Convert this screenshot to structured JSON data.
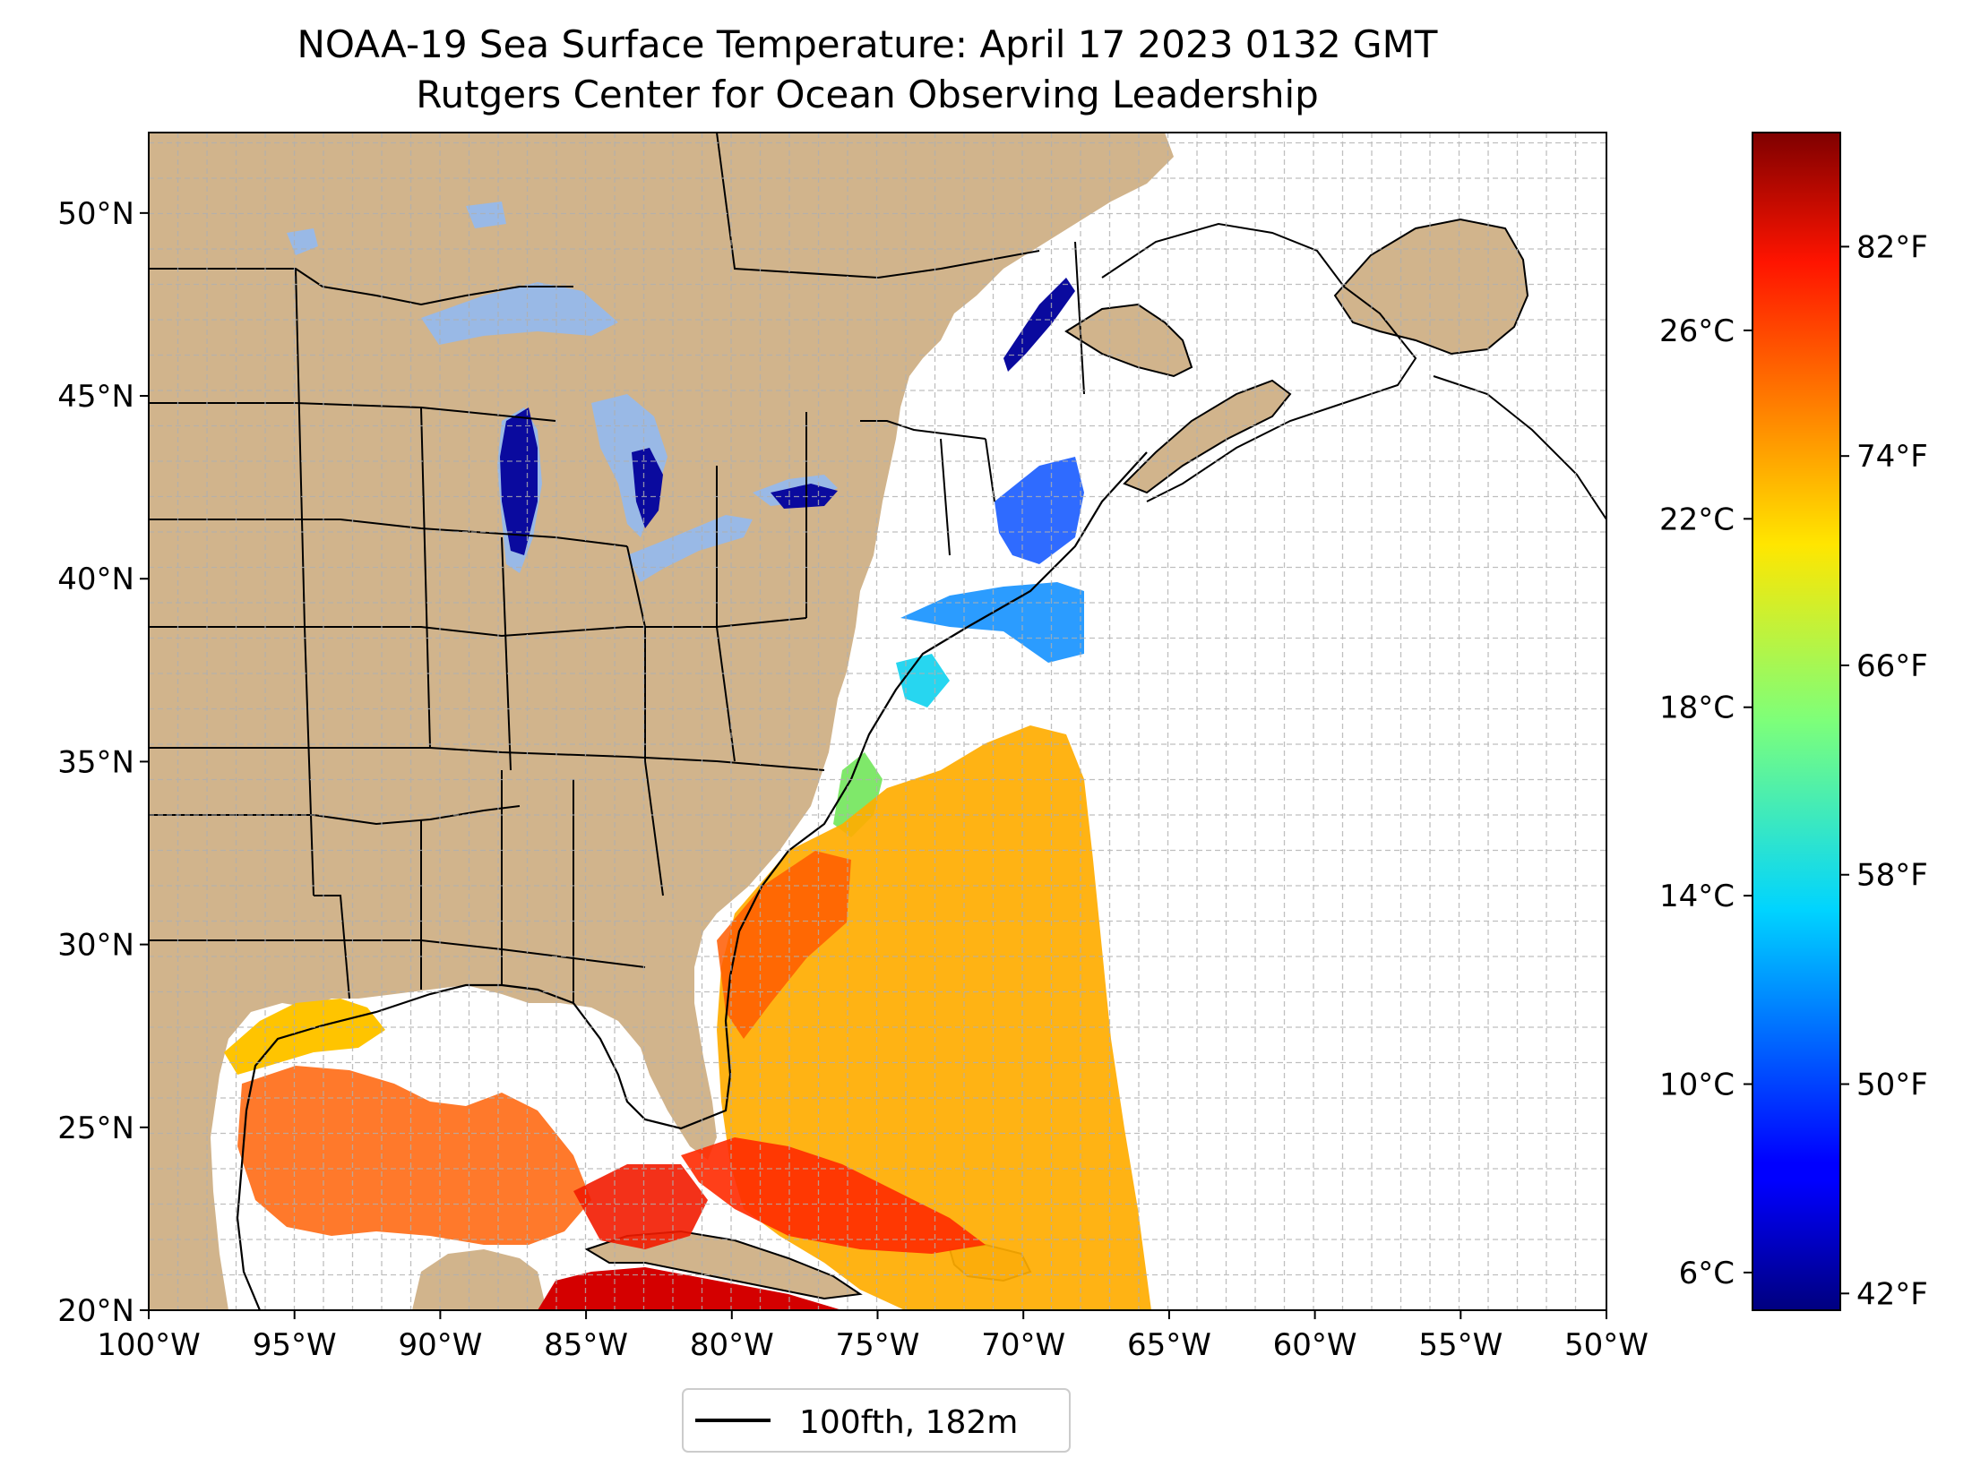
{
  "title": {
    "line1": "NOAA-19 Sea Surface Temperature: April 17 2023 0132 GMT",
    "line2": "Rutgers Center for Ocean Observing Leadership"
  },
  "map": {
    "lon_range": [
      -100,
      -50
    ],
    "lat_range": [
      20,
      52.2
    ],
    "lon_ticks": [
      {
        "lon": -100,
        "label": "100°W"
      },
      {
        "lon": -95,
        "label": "95°W"
      },
      {
        "lon": -90,
        "label": "90°W"
      },
      {
        "lon": -85,
        "label": "85°W"
      },
      {
        "lon": -80,
        "label": "80°W"
      },
      {
        "lon": -75,
        "label": "75°W"
      },
      {
        "lon": -70,
        "label": "70°W"
      },
      {
        "lon": -65,
        "label": "65°W"
      },
      {
        "lon": -60,
        "label": "60°W"
      },
      {
        "lon": -55,
        "label": "55°W"
      },
      {
        "lon": -50,
        "label": "50°W"
      }
    ],
    "lat_ticks": [
      {
        "lat": 20,
        "label": "20°N"
      },
      {
        "lat": 25,
        "label": "25°N"
      },
      {
        "lat": 30,
        "label": "30°N"
      },
      {
        "lat": 35,
        "label": "35°N"
      },
      {
        "lat": 40,
        "label": "40°N"
      },
      {
        "lat": 45,
        "label": "45°N"
      },
      {
        "lat": 50,
        "label": "50°N"
      }
    ],
    "grid": true,
    "land_color": "#d1b48c",
    "lake_color": "#99b9e6",
    "ocean_color": "#ffffff"
  },
  "colorbar": {
    "colormap": "jet",
    "celsius_range": [
      5.2,
      30.2
    ],
    "celsius_ticks": [
      {
        "value": 6,
        "label": "6°C"
      },
      {
        "value": 10,
        "label": "10°C"
      },
      {
        "value": 14,
        "label": "14°C"
      },
      {
        "value": 18,
        "label": "18°C"
      },
      {
        "value": 22,
        "label": "22°C"
      },
      {
        "value": 26,
        "label": "26°C"
      }
    ],
    "fahrenheit_ticks": [
      {
        "value": 42,
        "label": "42°F"
      },
      {
        "value": 50,
        "label": "50°F"
      },
      {
        "value": 58,
        "label": "58°F"
      },
      {
        "value": 66,
        "label": "66°F"
      },
      {
        "value": 74,
        "label": "74°F"
      },
      {
        "value": 82,
        "label": "82°F"
      }
    ]
  },
  "legend": {
    "entries": [
      {
        "label": "100fth, 182m",
        "style": "solid black line"
      }
    ],
    "placement": "bottom-center"
  }
}
